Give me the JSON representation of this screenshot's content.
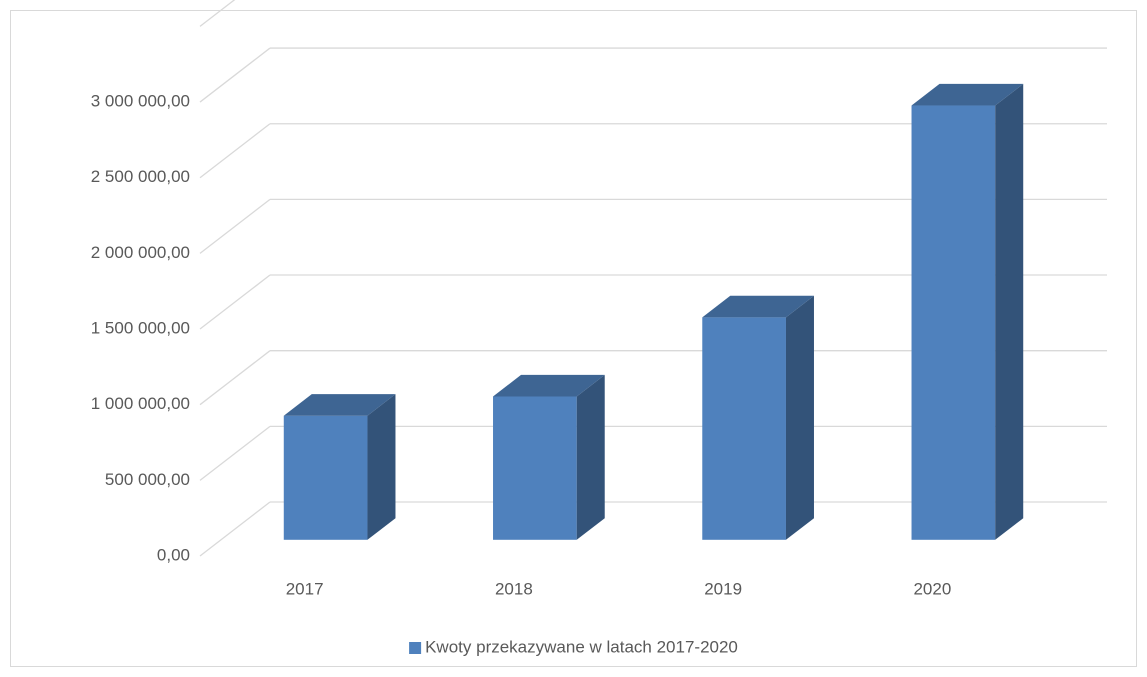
{
  "chart_data": {
    "type": "bar3d",
    "categories": [
      "2017",
      "2018",
      "2019",
      "2020"
    ],
    "series": [
      {
        "name": "Kwoty przekazywane w latach 2017-2020",
        "color": "#4f81bd",
        "values": [
          820000,
          947000,
          1470000,
          2870000
        ]
      }
    ],
    "ylim": [
      0,
      3500000
    ],
    "yticks": [
      {
        "value": 0,
        "label": "0,00"
      },
      {
        "value": 500000,
        "label": "500 000,00"
      },
      {
        "value": 1000000,
        "label": "1 000 000,00"
      },
      {
        "value": 1500000,
        "label": "1 500 000,00"
      },
      {
        "value": 2000000,
        "label": "2 000 000,00"
      },
      {
        "value": 2500000,
        "label": "2 500 000,00"
      },
      {
        "value": 3000000,
        "label": "3 000 000,00"
      }
    ],
    "grid": true,
    "legend": "bottom"
  }
}
